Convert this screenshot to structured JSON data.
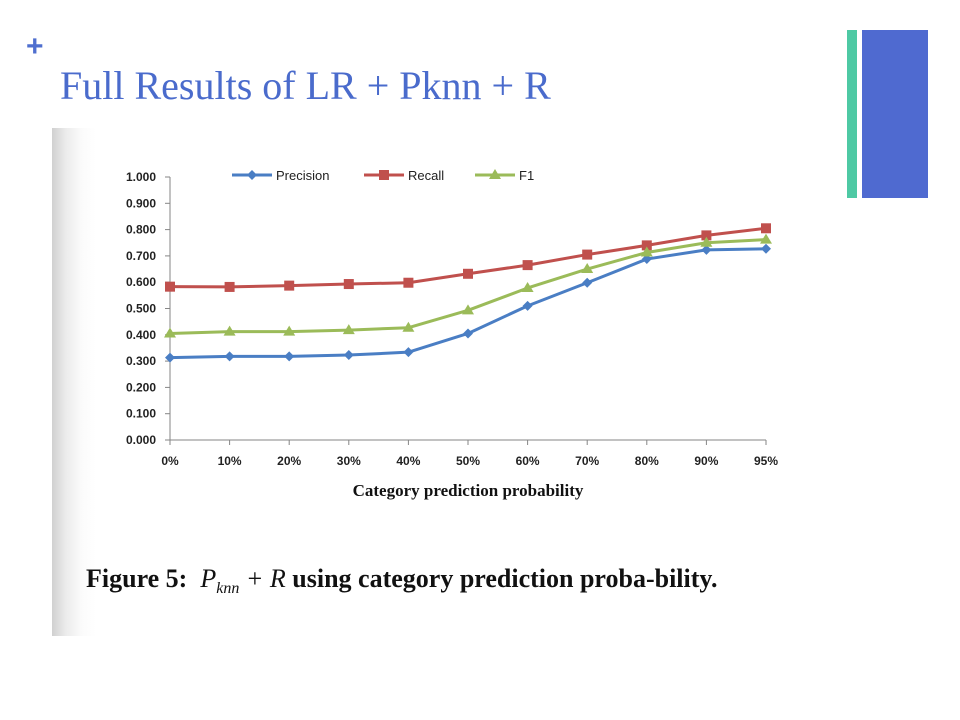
{
  "slide": {
    "bullet": "+",
    "title": "Full Results of LR + Pknn + R",
    "accent_colors": {
      "teal": "#4ec9a4",
      "blue": "#4f6ad0"
    }
  },
  "caption": {
    "label": "Figure 5:",
    "math_main": "P",
    "math_sub": "knn",
    "math_rest": "+ R",
    "text": "using category prediction proba-bility."
  },
  "chart_data": {
    "type": "line",
    "title": "",
    "xlabel": "Category prediction  probability",
    "ylabel": "",
    "categories": [
      "0%",
      "10%",
      "20%",
      "30%",
      "40%",
      "50%",
      "60%",
      "70%",
      "80%",
      "90%",
      "95%"
    ],
    "ylim": [
      0,
      1
    ],
    "yticks": [
      "0.000",
      "0.100",
      "0.200",
      "0.300",
      "0.400",
      "0.500",
      "0.600",
      "0.700",
      "0.800",
      "0.900",
      "1.000"
    ],
    "grid": false,
    "legend": "top",
    "series": [
      {
        "name": "Precision",
        "color": "#4a7ec4",
        "marker": "diamond",
        "values": [
          0.313,
          0.318,
          0.318,
          0.323,
          0.334,
          0.405,
          0.51,
          0.598,
          0.688,
          0.723,
          0.727
        ]
      },
      {
        "name": "Recall",
        "color": "#c0504d",
        "marker": "square",
        "values": [
          0.583,
          0.582,
          0.587,
          0.593,
          0.598,
          0.632,
          0.665,
          0.705,
          0.74,
          0.778,
          0.805
        ]
      },
      {
        "name": "F1",
        "color": "#9bbb59",
        "marker": "triangle",
        "values": [
          0.405,
          0.412,
          0.412,
          0.418,
          0.427,
          0.493,
          0.578,
          0.65,
          0.713,
          0.75,
          0.762
        ]
      }
    ]
  }
}
